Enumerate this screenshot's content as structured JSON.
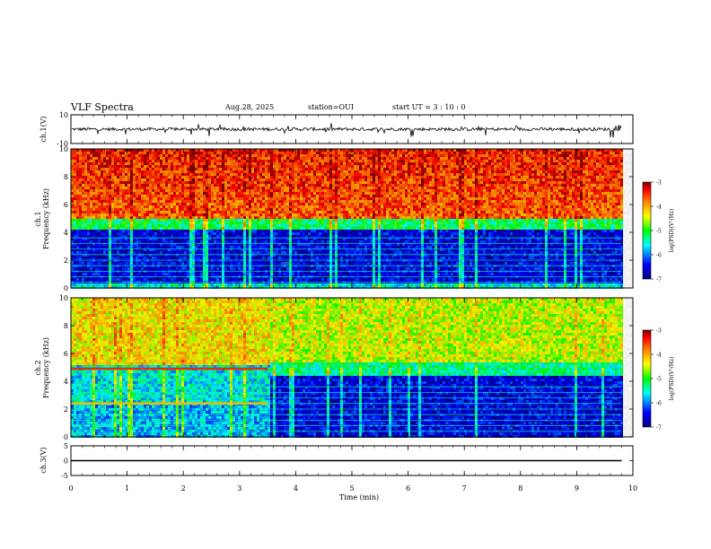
{
  "header": {
    "title": "VLF Spectra",
    "date": "Aug.28, 2025",
    "station": "station=OUI",
    "start": "start  UT =   3  : 10 : 0"
  },
  "chart_data": [
    {
      "type": "line",
      "panel": "ch1",
      "ylabel": "ch.1(V)",
      "ylim": [
        -10,
        10
      ],
      "yticks": [
        "10",
        "-10"
      ],
      "description": "noisy time series around ~0 V with spikes"
    },
    {
      "type": "heatmap",
      "panel": "spec1",
      "ylabel": "ch.1\nFrequency (kHz)",
      "ylabel_lines": [
        "ch.1",
        "Frequency  (kHz)"
      ],
      "ylim": [
        0,
        10
      ],
      "yticks": [
        "0",
        "2",
        "4",
        "6",
        "8",
        "10"
      ],
      "colorbar": {
        "label": "log(PSD)(V²/Hz)",
        "ticks": [
          "-3",
          "-4",
          "-5",
          "-6",
          "-7"
        ],
        "range": [
          -7,
          -3
        ]
      },
      "lines_khz": [
        0.4,
        0.8,
        1.2,
        1.6,
        2.0,
        2.4,
        2.8,
        3.2,
        3.6
      ]
    },
    {
      "type": "heatmap",
      "panel": "spec2",
      "ylabel_lines": [
        "ch.2",
        "Frequency  (kHz)"
      ],
      "ylim": [
        0,
        10
      ],
      "yticks": [
        "0",
        "2",
        "4",
        "6",
        "8",
        "10"
      ],
      "colorbar": {
        "label": "log(PSD)(V²/Hz)",
        "ticks": [
          "-3",
          "-4",
          "-5",
          "-6",
          "-7"
        ],
        "range": [
          -7,
          -3
        ]
      },
      "lines_khz": [
        0.4,
        0.8,
        1.2,
        1.6,
        2.0,
        2.4,
        2.8,
        3.2,
        3.6
      ]
    },
    {
      "type": "line",
      "panel": "ch3",
      "ylabel": "ch.3(V)",
      "ylim": [
        -5,
        5
      ],
      "yticks": [
        "5",
        "0",
        "-5"
      ],
      "value": 0
    }
  ],
  "xaxis": {
    "label": "Time  (min)",
    "range": [
      0,
      10
    ],
    "ticks": [
      "0",
      "1",
      "2",
      "3",
      "4",
      "5",
      "6",
      "7",
      "8",
      "9",
      "10"
    ],
    "data_end": 9.8
  },
  "colors": [
    "#00007f",
    "#0000ff",
    "#00ffff",
    "#00ff00",
    "#ffff00",
    "#ff8000",
    "#ff0000",
    "#7f0000"
  ]
}
